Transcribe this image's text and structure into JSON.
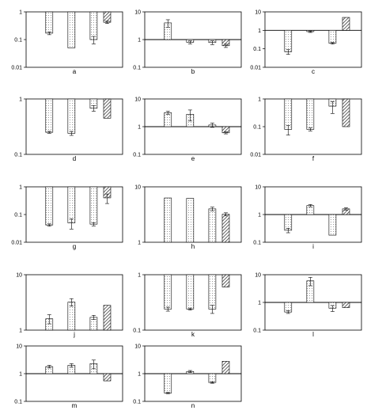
{
  "chart_data": [
    {
      "type": "bar",
      "label": "a",
      "y_scale": "log",
      "ylim": [
        0.01,
        1
      ],
      "y_ticks": [
        "1",
        "0.1",
        "0.01"
      ],
      "baseline": 1,
      "bars": [
        {
          "value": 0.17,
          "err": 0.02,
          "pattern": "dots"
        },
        {
          "value": 0.05,
          "err": 0,
          "pattern": "dots"
        },
        {
          "value": 0.1,
          "err": 0.03,
          "pattern": "dots"
        },
        {
          "value": 0.42,
          "err": 0.04,
          "pattern": "hatch"
        }
      ]
    },
    {
      "type": "bar",
      "label": "b",
      "y_scale": "log",
      "ylim": [
        0.1,
        10
      ],
      "y_ticks": [
        "10",
        "1",
        "0.1"
      ],
      "baseline": 1,
      "bars": [
        {
          "value": 4,
          "err": 1.2,
          "pattern": "dots"
        },
        {
          "value": 0.8,
          "err": 0.1,
          "pattern": "dots"
        },
        {
          "value": 0.78,
          "err": 0.12,
          "pattern": "dots"
        },
        {
          "value": 0.6,
          "err": 0.08,
          "pattern": "hatch"
        }
      ]
    },
    {
      "type": "bar",
      "label": "c",
      "y_scale": "log",
      "ylim": [
        0.01,
        10
      ],
      "y_ticks": [
        "10",
        "1",
        "0.1",
        "0.01"
      ],
      "baseline": 1,
      "bars": [
        {
          "value": 0.07,
          "err": 0.02,
          "pattern": "dots"
        },
        {
          "value": 0.85,
          "err": 0.08,
          "pattern": "dots"
        },
        {
          "value": 0.2,
          "err": 0.02,
          "pattern": "dots"
        },
        {
          "value": 5,
          "err": 0,
          "pattern": "hatch"
        }
      ]
    },
    {
      "type": "bar",
      "label": "d",
      "y_scale": "log",
      "ylim": [
        0.1,
        1
      ],
      "y_ticks": [
        "1",
        "0.1"
      ],
      "baseline": 1,
      "bars": [
        {
          "value": 0.25,
          "err": 0.01,
          "pattern": "dots"
        },
        {
          "value": 0.24,
          "err": 0.02,
          "pattern": "dots"
        },
        {
          "value": 0.68,
          "err": 0.08,
          "pattern": "dots"
        },
        {
          "value": 0.45,
          "err": 0,
          "pattern": "hatch"
        }
      ]
    },
    {
      "type": "bar",
      "label": "e",
      "y_scale": "log",
      "ylim": [
        0.1,
        10
      ],
      "y_ticks": [
        "10",
        "1",
        "0.1"
      ],
      "baseline": 1,
      "bars": [
        {
          "value": 3.2,
          "err": 0.4,
          "pattern": "dots"
        },
        {
          "value": 2.8,
          "err": 1.2,
          "pattern": "dots"
        },
        {
          "value": 1.15,
          "err": 0.2,
          "pattern": "dots"
        },
        {
          "value": 0.6,
          "err": 0.05,
          "pattern": "hatch"
        }
      ]
    },
    {
      "type": "bar",
      "label": "f",
      "y_scale": "log",
      "ylim": [
        0.01,
        1
      ],
      "y_ticks": [
        "1",
        "0.1",
        "0.01"
      ],
      "baseline": 1,
      "bars": [
        {
          "value": 0.08,
          "err": 0.03,
          "pattern": "dots"
        },
        {
          "value": 0.08,
          "err": 0.01,
          "pattern": "dots"
        },
        {
          "value": 0.55,
          "err": 0.25,
          "pattern": "dots"
        },
        {
          "value": 0.1,
          "err": 0,
          "pattern": "hatch"
        }
      ]
    },
    {
      "type": "bar",
      "label": "g",
      "y_scale": "log",
      "ylim": [
        0.01,
        1
      ],
      "y_ticks": [
        "1",
        "0.1",
        "0.01"
      ],
      "baseline": 1,
      "bars": [
        {
          "value": 0.042,
          "err": 0.004,
          "pattern": "dots"
        },
        {
          "value": 0.05,
          "err": 0.02,
          "pattern": "dots"
        },
        {
          "value": 0.045,
          "err": 0.006,
          "pattern": "dots"
        },
        {
          "value": 0.4,
          "err": 0.15,
          "pattern": "hatch"
        }
      ]
    },
    {
      "type": "bar",
      "label": "h",
      "y_scale": "log",
      "ylim": [
        1,
        10
      ],
      "y_ticks": [
        "10",
        "1"
      ],
      "baseline": 1,
      "bars": [
        {
          "value": 6.3,
          "err": 0,
          "pattern": "dots"
        },
        {
          "value": 6.2,
          "err": 0,
          "pattern": "dots"
        },
        {
          "value": 4.0,
          "err": 0.3,
          "pattern": "dots"
        },
        {
          "value": 3.2,
          "err": 0.2,
          "pattern": "hatch"
        }
      ]
    },
    {
      "type": "bar",
      "label": "i",
      "y_scale": "log",
      "ylim": [
        0.1,
        10
      ],
      "y_ticks": [
        "10",
        "1",
        "0.1"
      ],
      "baseline": 1,
      "bars": [
        {
          "value": 0.27,
          "err": 0.05,
          "pattern": "dots"
        },
        {
          "value": 2.1,
          "err": 0.2,
          "pattern": "dots"
        },
        {
          "value": 0.18,
          "err": 0,
          "pattern": "dots"
        },
        {
          "value": 1.6,
          "err": 0.15,
          "pattern": "hatch"
        }
      ]
    },
    {
      "type": "bar",
      "label": "j",
      "y_scale": "log",
      "ylim": [
        1,
        10
      ],
      "y_ticks": [
        "10",
        "1"
      ],
      "baseline": 1,
      "bars": [
        {
          "value": 1.6,
          "err": 0.3,
          "pattern": "dots"
        },
        {
          "value": 3.2,
          "err": 0.5,
          "pattern": "dots"
        },
        {
          "value": 1.7,
          "err": 0.15,
          "pattern": "dots"
        },
        {
          "value": 2.8,
          "err": 0,
          "pattern": "hatch"
        }
      ]
    },
    {
      "type": "bar",
      "label": "k",
      "y_scale": "log",
      "ylim": [
        0.1,
        1
      ],
      "y_ticks": [
        "1",
        "0.1"
      ],
      "baseline": 1,
      "bars": [
        {
          "value": 0.24,
          "err": 0.02,
          "pattern": "dots"
        },
        {
          "value": 0.24,
          "err": 0.01,
          "pattern": "dots"
        },
        {
          "value": 0.24,
          "err": 0.04,
          "pattern": "dots"
        },
        {
          "value": 0.6,
          "err": 0,
          "pattern": "hatch"
        }
      ]
    },
    {
      "type": "bar",
      "label": "l",
      "y_scale": "log",
      "ylim": [
        0.1,
        10
      ],
      "y_ticks": [
        "10",
        "1",
        "0.1"
      ],
      "baseline": 1,
      "bars": [
        {
          "value": 0.45,
          "err": 0.05,
          "pattern": "dots"
        },
        {
          "value": 6,
          "err": 2,
          "pattern": "dots"
        },
        {
          "value": 0.62,
          "err": 0.15,
          "pattern": "dots"
        },
        {
          "value": 0.65,
          "err": 0,
          "pattern": "hatch"
        }
      ]
    },
    {
      "type": "bar",
      "label": "m",
      "y_scale": "log",
      "ylim": [
        0.1,
        10
      ],
      "y_ticks": [
        "10",
        "1",
        "0.1"
      ],
      "baseline": 1,
      "bars": [
        {
          "value": 1.8,
          "err": 0.2,
          "pattern": "dots"
        },
        {
          "value": 2.0,
          "err": 0.3,
          "pattern": "dots"
        },
        {
          "value": 2.3,
          "err": 0.8,
          "pattern": "dots"
        },
        {
          "value": 0.55,
          "err": 0,
          "pattern": "hatch"
        }
      ]
    },
    {
      "type": "bar",
      "label": "n",
      "y_scale": "log",
      "ylim": [
        0.1,
        10
      ],
      "y_ticks": [
        "10",
        "1",
        "0.1"
      ],
      "baseline": 1,
      "bars": [
        {
          "value": 0.2,
          "err": 0.01,
          "pattern": "dots"
        },
        {
          "value": 1.2,
          "err": 0.1,
          "pattern": "dots"
        },
        {
          "value": 0.48,
          "err": 0.03,
          "pattern": "dots"
        },
        {
          "value": 2.8,
          "err": 0,
          "pattern": "hatch"
        }
      ]
    }
  ]
}
